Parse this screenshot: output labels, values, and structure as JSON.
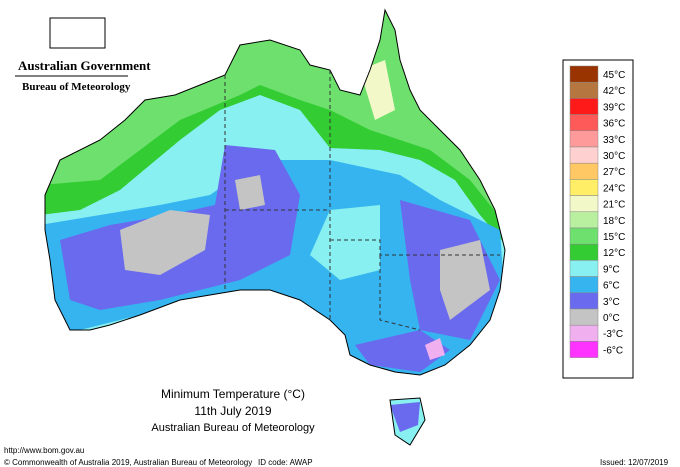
{
  "header": {
    "agency": "Australian Government",
    "bureau": "Bureau of Meteorology"
  },
  "legend": {
    "items": [
      {
        "label": "45°C",
        "color": "#993300"
      },
      {
        "label": "42°C",
        "color": "#b5773f"
      },
      {
        "label": "39°C",
        "color": "#ff1a1a"
      },
      {
        "label": "36°C",
        "color": "#ff5a5a"
      },
      {
        "label": "33°C",
        "color": "#ff9a9a"
      },
      {
        "label": "30°C",
        "color": "#ffd0d0"
      },
      {
        "label": "27°C",
        "color": "#ffc864"
      },
      {
        "label": "24°C",
        "color": "#ffee66"
      },
      {
        "label": "21°C",
        "color": "#f2f8c8"
      },
      {
        "label": "18°C",
        "color": "#b8f0a0"
      },
      {
        "label": "15°C",
        "color": "#6ee06e"
      },
      {
        "label": "12°C",
        "color": "#33cc33"
      },
      {
        "label": "9°C",
        "color": "#88f0f0"
      },
      {
        "label": "6°C",
        "color": "#35b4f0"
      },
      {
        "label": "3°C",
        "color": "#6a6aee"
      },
      {
        "label": "0°C",
        "color": "#c4c4c4"
      },
      {
        "label": "-3°C",
        "color": "#f0b0f0"
      },
      {
        "label": "-6°C",
        "color": "#ff33ff"
      }
    ]
  },
  "caption": {
    "title": "Minimum Temperature (°C)",
    "date": "11th July 2019",
    "source": "Australian Bureau of Meteorology"
  },
  "footer": {
    "url": "http://www.bom.gov.au",
    "copyright": "© Commonwealth of Australia 2019, Australian Bureau of Meteorology",
    "id_code": "ID code: AWAP",
    "issued": "Issued: 12/07/2019"
  }
}
